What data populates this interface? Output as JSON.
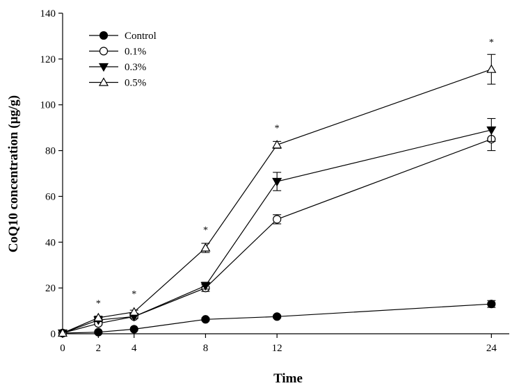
{
  "chart_data": {
    "type": "line",
    "xlabel": "Time",
    "ylabel": "CoQ10 concentration (µg/g)",
    "x": [
      0,
      2,
      4,
      8,
      12,
      24
    ],
    "xticks": [
      "0",
      "2",
      "4",
      "8",
      "12",
      "24"
    ],
    "xlim": [
      0,
      25
    ],
    "ylim": [
      0,
      140
    ],
    "yticks": [
      "0",
      "20",
      "40",
      "60",
      "80",
      "100",
      "120",
      "140"
    ],
    "grid": false,
    "legend_position": "top-left",
    "series": [
      {
        "name": "Control",
        "marker": "filled-circle",
        "values": [
          0.3,
          0.7,
          2.0,
          6.3,
          7.5,
          13.0
        ],
        "errors": [
          0.3,
          0.3,
          0.4,
          0.6,
          0.6,
          1.5
        ]
      },
      {
        "name": "0.1%",
        "marker": "open-circle",
        "values": [
          0.3,
          4.5,
          7.5,
          20.0,
          50.0,
          85.0
        ],
        "errors": [
          0.3,
          0.6,
          0.8,
          1.5,
          2.0,
          5.0
        ]
      },
      {
        "name": "0.3%",
        "marker": "filled-triangle-down",
        "values": [
          0.3,
          6.0,
          7.5,
          21.0,
          66.5,
          89.0
        ],
        "errors": [
          0.3,
          0.7,
          0.8,
          1.5,
          4.0,
          5.0
        ]
      },
      {
        "name": "0.5%",
        "marker": "open-triangle-up",
        "values": [
          0.3,
          7.0,
          9.5,
          37.5,
          82.5,
          115.5
        ],
        "errors": [
          0.3,
          0.7,
          0.8,
          2.0,
          1.5,
          6.5
        ]
      }
    ],
    "annotations": [
      {
        "x": 2,
        "y": 14.5,
        "text": "*"
      },
      {
        "x": 4,
        "y": 18.5,
        "text": "*"
      },
      {
        "x": 8,
        "y": 46.5,
        "text": "*"
      },
      {
        "x": 12,
        "y": 91.0,
        "text": "*"
      },
      {
        "x": 24,
        "y": 128.5,
        "text": "*"
      }
    ]
  }
}
